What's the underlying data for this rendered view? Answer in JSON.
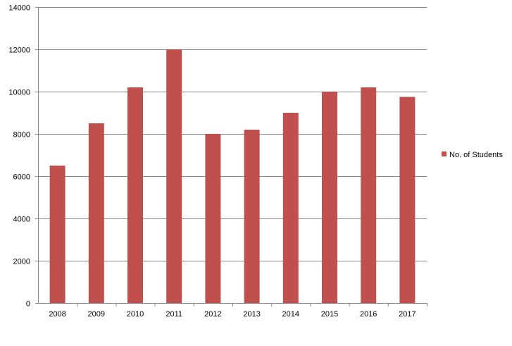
{
  "chart_data": {
    "type": "bar",
    "categories": [
      "2008",
      "2009",
      "2010",
      "2011",
      "2012",
      "2013",
      "2014",
      "2015",
      "2016",
      "2017"
    ],
    "series": [
      {
        "name": "No. of Students",
        "values": [
          6500,
          8500,
          10200,
          12000,
          8000,
          8200,
          9000,
          10000,
          10200,
          9750
        ],
        "color": "#c0504d"
      }
    ],
    "title": "",
    "xlabel": "",
    "ylabel": "",
    "ylim": [
      0,
      14000
    ],
    "yticks": [
      "0",
      "2000",
      "4000",
      "6000",
      "8000",
      "10000",
      "12000",
      "14000"
    ],
    "grid": true,
    "legend_position": "right",
    "gridline_color": "#888888",
    "axis_color": "#888888"
  }
}
